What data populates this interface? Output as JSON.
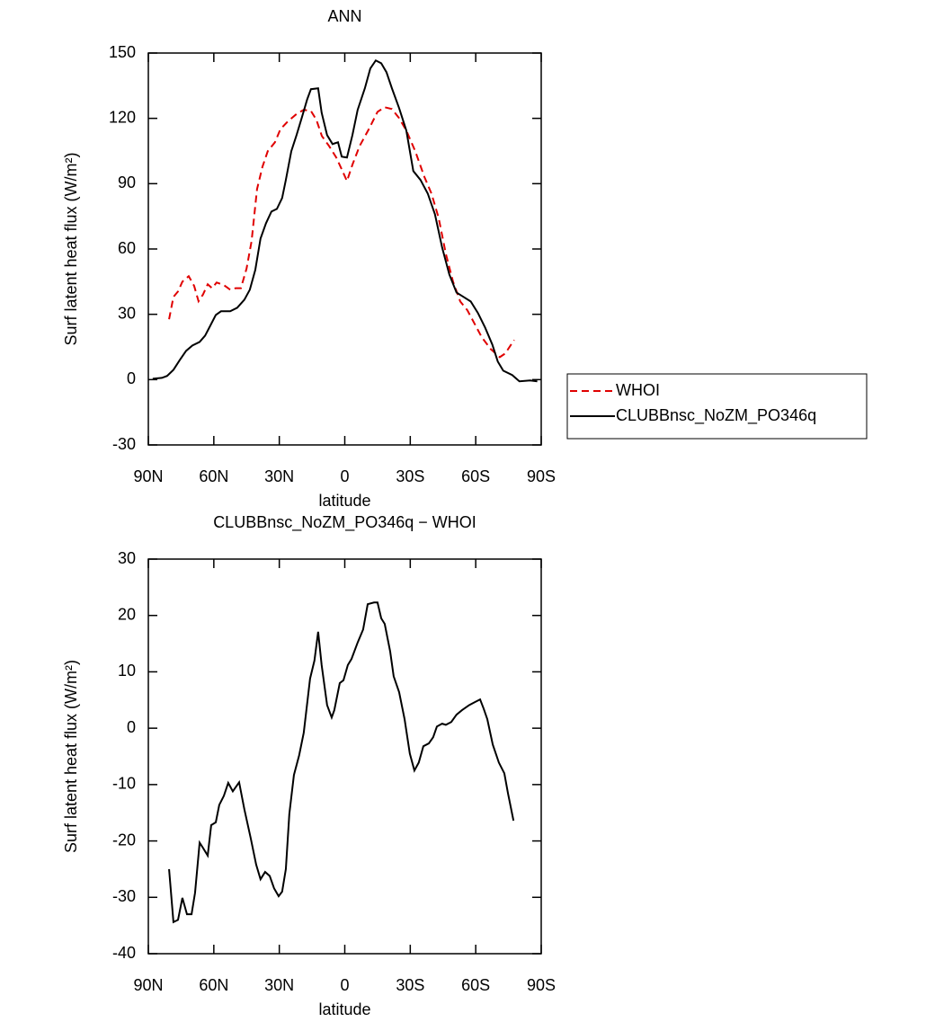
{
  "chart_data": [
    {
      "type": "line",
      "title": "ANN",
      "xlabel": "latitude",
      "ylabel": "Surf latent heat flux (W/m²)",
      "xlim": [
        90,
        -90
      ],
      "ylim": [
        -30,
        150
      ],
      "xticks": [
        {
          "value": 90,
          "label": "90N"
        },
        {
          "value": 60,
          "label": "60N"
        },
        {
          "value": 30,
          "label": "30N"
        },
        0,
        {
          "value": -30,
          "label": "30S"
        },
        {
          "value": -60,
          "label": "60S"
        },
        {
          "value": -90,
          "label": "90S"
        }
      ],
      "yticks": [
        -30,
        0,
        30,
        60,
        90,
        120,
        150
      ],
      "legend": "right",
      "series": [
        {
          "name": "WHOI",
          "color": "#e00000",
          "line_style": "dashed",
          "x": [
            80.5,
            78.5,
            76.4,
            74.4,
            71.5,
            69,
            67,
            65,
            62.8,
            60.8,
            58.7,
            55.4,
            52.5,
            50,
            47.6,
            45,
            42.7,
            40.2,
            37.7,
            35.3,
            32,
            29.5,
            26.2,
            22.1,
            18.8,
            15.5,
            13,
            10.5,
            7.2,
            3.9,
            1.4,
            -1,
            -3.5,
            -6.8,
            -10.9,
            -15,
            -18.3,
            -21.6,
            -24.9,
            -28.2,
            -32.3,
            -36.4,
            -39.7,
            -43,
            -46.3,
            -49.6,
            -52.9,
            -56.2,
            -59.5,
            -62.8,
            -66.9,
            -71,
            -73.5,
            -77.6
          ],
          "values": [
            27.7,
            38,
            40.5,
            45,
            47.5,
            43,
            36,
            39,
            43.8,
            42,
            44.6,
            43.4,
            41.3,
            42,
            42,
            51,
            63.6,
            87.5,
            97.8,
            104.9,
            109,
            115,
            118.5,
            122,
            123.9,
            123.4,
            119.3,
            111.9,
            107.3,
            102,
            96.6,
            91.2,
            98.7,
            107.3,
            114.8,
            123,
            125.1,
            124.3,
            120.1,
            114.4,
            104.9,
            93.3,
            85.5,
            74.3,
            57.8,
            45,
            35.9,
            31.8,
            25.6,
            19.4,
            14,
            10.3,
            12,
            18.2
          ]
        },
        {
          "name": "CLUBBnsc_NoZM_PO346q",
          "color": "#000000",
          "line_style": "solid",
          "x": [
            88,
            83.8,
            81.4,
            78.5,
            75.6,
            72.7,
            69.8,
            66.5,
            64,
            61.6,
            59.1,
            56.7,
            52.5,
            49.3,
            46,
            43.5,
            41,
            38.6,
            36.1,
            33.6,
            31.1,
            28.7,
            27,
            24.5,
            22.1,
            19.6,
            17.2,
            15.5,
            12.2,
            10.6,
            8.1,
            5.6,
            3.1,
            1.4,
            -1,
            -3.5,
            -5.9,
            -9.2,
            -11.7,
            -14.2,
            -16.7,
            -19.1,
            -21.6,
            -24.9,
            -28.2,
            -31.4,
            -34.7,
            -38,
            -41.3,
            -44.6,
            -47.9,
            -51.2,
            -54.4,
            -57.7,
            -61,
            -64.3,
            -67.6,
            -70.1,
            -72.6,
            -76.7,
            -80,
            -84.9,
            -88.2
          ],
          "values": [
            0.4,
            0.8,
            1.7,
            4.5,
            9,
            13.2,
            15.7,
            17.3,
            20.2,
            24.8,
            29.7,
            31.4,
            31.4,
            33,
            36.7,
            41.3,
            50.4,
            64.8,
            71.8,
            77.2,
            78.4,
            83.4,
            91.7,
            104.9,
            112.3,
            120.6,
            128.8,
            133.4,
            133.8,
            122.6,
            112.3,
            108.2,
            109,
            102.4,
            102,
            112.3,
            123.9,
            133.8,
            142.9,
            146.6,
            145.3,
            141.2,
            133.8,
            124.7,
            114.4,
            95.8,
            91.7,
            85.5,
            76,
            60.7,
            48.3,
            40,
            38,
            35.9,
            30.6,
            23.9,
            16.1,
            8.3,
            4.1,
            2.1,
            -0.8,
            -0.4,
            -0.8
          ]
        }
      ]
    },
    {
      "type": "line",
      "title": "CLUBBnsc_NoZM_PO346q − WHOI",
      "xlabel": "latitude",
      "ylabel": "Surf latent heat flux (W/m²)",
      "xlim": [
        90,
        -90
      ],
      "ylim": [
        -40,
        30
      ],
      "xticks": [
        {
          "value": 90,
          "label": "90N"
        },
        {
          "value": 60,
          "label": "60N"
        },
        {
          "value": 30,
          "label": "30N"
        },
        0,
        {
          "value": -30,
          "label": "30S"
        },
        {
          "value": -60,
          "label": "60S"
        },
        {
          "value": -90,
          "label": "90S"
        }
      ],
      "yticks": [
        -40,
        -30,
        -20,
        -10,
        0,
        10,
        20,
        30
      ],
      "series": [
        {
          "color": "#000000",
          "line_style": "solid",
          "x": [
            80.5,
            78.5,
            76.4,
            74.4,
            72.3,
            70.2,
            68.6,
            66.5,
            65,
            62.8,
            61.2,
            59.1,
            57.5,
            55.4,
            53.4,
            51.3,
            48.4,
            46,
            43.1,
            40.6,
            38.6,
            36.5,
            34.4,
            32.4,
            30.3,
            28.7,
            27,
            25.4,
            23.3,
            20.9,
            18.8,
            15.9,
            13.9,
            12.2,
            10.6,
            8.1,
            6,
            4.8,
            2.3,
            0.6,
            -1.4,
            -3.1,
            -5.9,
            -8.4,
            -10.5,
            -13.4,
            -15,
            -16.7,
            -18.3,
            -20.8,
            -22.4,
            -24.9,
            -27.4,
            -29.8,
            -31.9,
            -33.9,
            -36,
            -38.5,
            -40.5,
            -42.2,
            -44.6,
            -46.3,
            -48.8,
            -51.2,
            -53.7,
            -57,
            -59.5,
            -62,
            -63.6,
            -65.3,
            -67.8,
            -70.6,
            -73.1,
            -74.8,
            -77.3
          ],
          "values": [
            -25,
            -34.4,
            -34,
            -30.1,
            -33,
            -33,
            -29.2,
            -20.3,
            -21.2,
            -22.6,
            -17.2,
            -16.7,
            -13.6,
            -12,
            -9.7,
            -11.2,
            -9.6,
            -14.4,
            -19.5,
            -24.2,
            -26.8,
            -25.5,
            -26.2,
            -28.4,
            -29.8,
            -29,
            -25,
            -15.2,
            -8.3,
            -4.8,
            -0.8,
            8.8,
            12,
            17.1,
            11.2,
            4.1,
            1.9,
            3.2,
            8,
            8.5,
            11.2,
            12.3,
            15.2,
            17.5,
            22,
            22.3,
            22.3,
            19.5,
            18.5,
            13.6,
            9.2,
            6.4,
            1.6,
            -4.5,
            -7.5,
            -6.1,
            -3.2,
            -2.7,
            -1.6,
            0.3,
            0.8,
            0.6,
            1.1,
            2.4,
            3.2,
            4.1,
            4.6,
            5.1,
            3.5,
            1.6,
            -2.9,
            -6.1,
            -8,
            -11.6,
            -16.4
          ]
        }
      ]
    }
  ]
}
